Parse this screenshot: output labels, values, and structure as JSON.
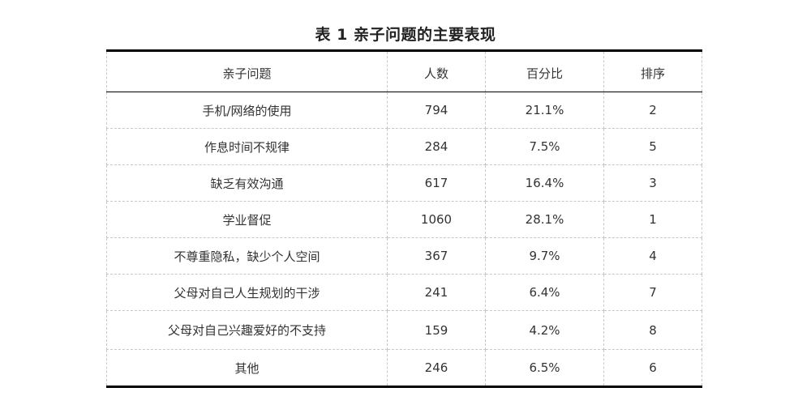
{
  "caption": "表 1  亲子问题的主要表现",
  "table": {
    "headers": [
      "亲子问题",
      "人数",
      "百分比",
      "排序"
    ],
    "rows": [
      [
        "手机/网络的使用",
        "794",
        "21.1%",
        "2"
      ],
      [
        "作息时间不规律",
        "284",
        "7.5%",
        "5"
      ],
      [
        "缺乏有效沟通",
        "617",
        "16.4%",
        "3"
      ],
      [
        "学业督促",
        "1060",
        "28.1%",
        "1"
      ],
      [
        "不尊重隐私，缺少个人空间",
        "367",
        "9.7%",
        "4"
      ],
      [
        "父母对自己人生规划的干涉",
        "241",
        "6.4%",
        "7"
      ],
      [
        "父母对自己兴趣爱好的不支持",
        "159",
        "4.2%",
        "8"
      ],
      [
        "其他",
        "246",
        "6.5%",
        "6"
      ]
    ]
  }
}
